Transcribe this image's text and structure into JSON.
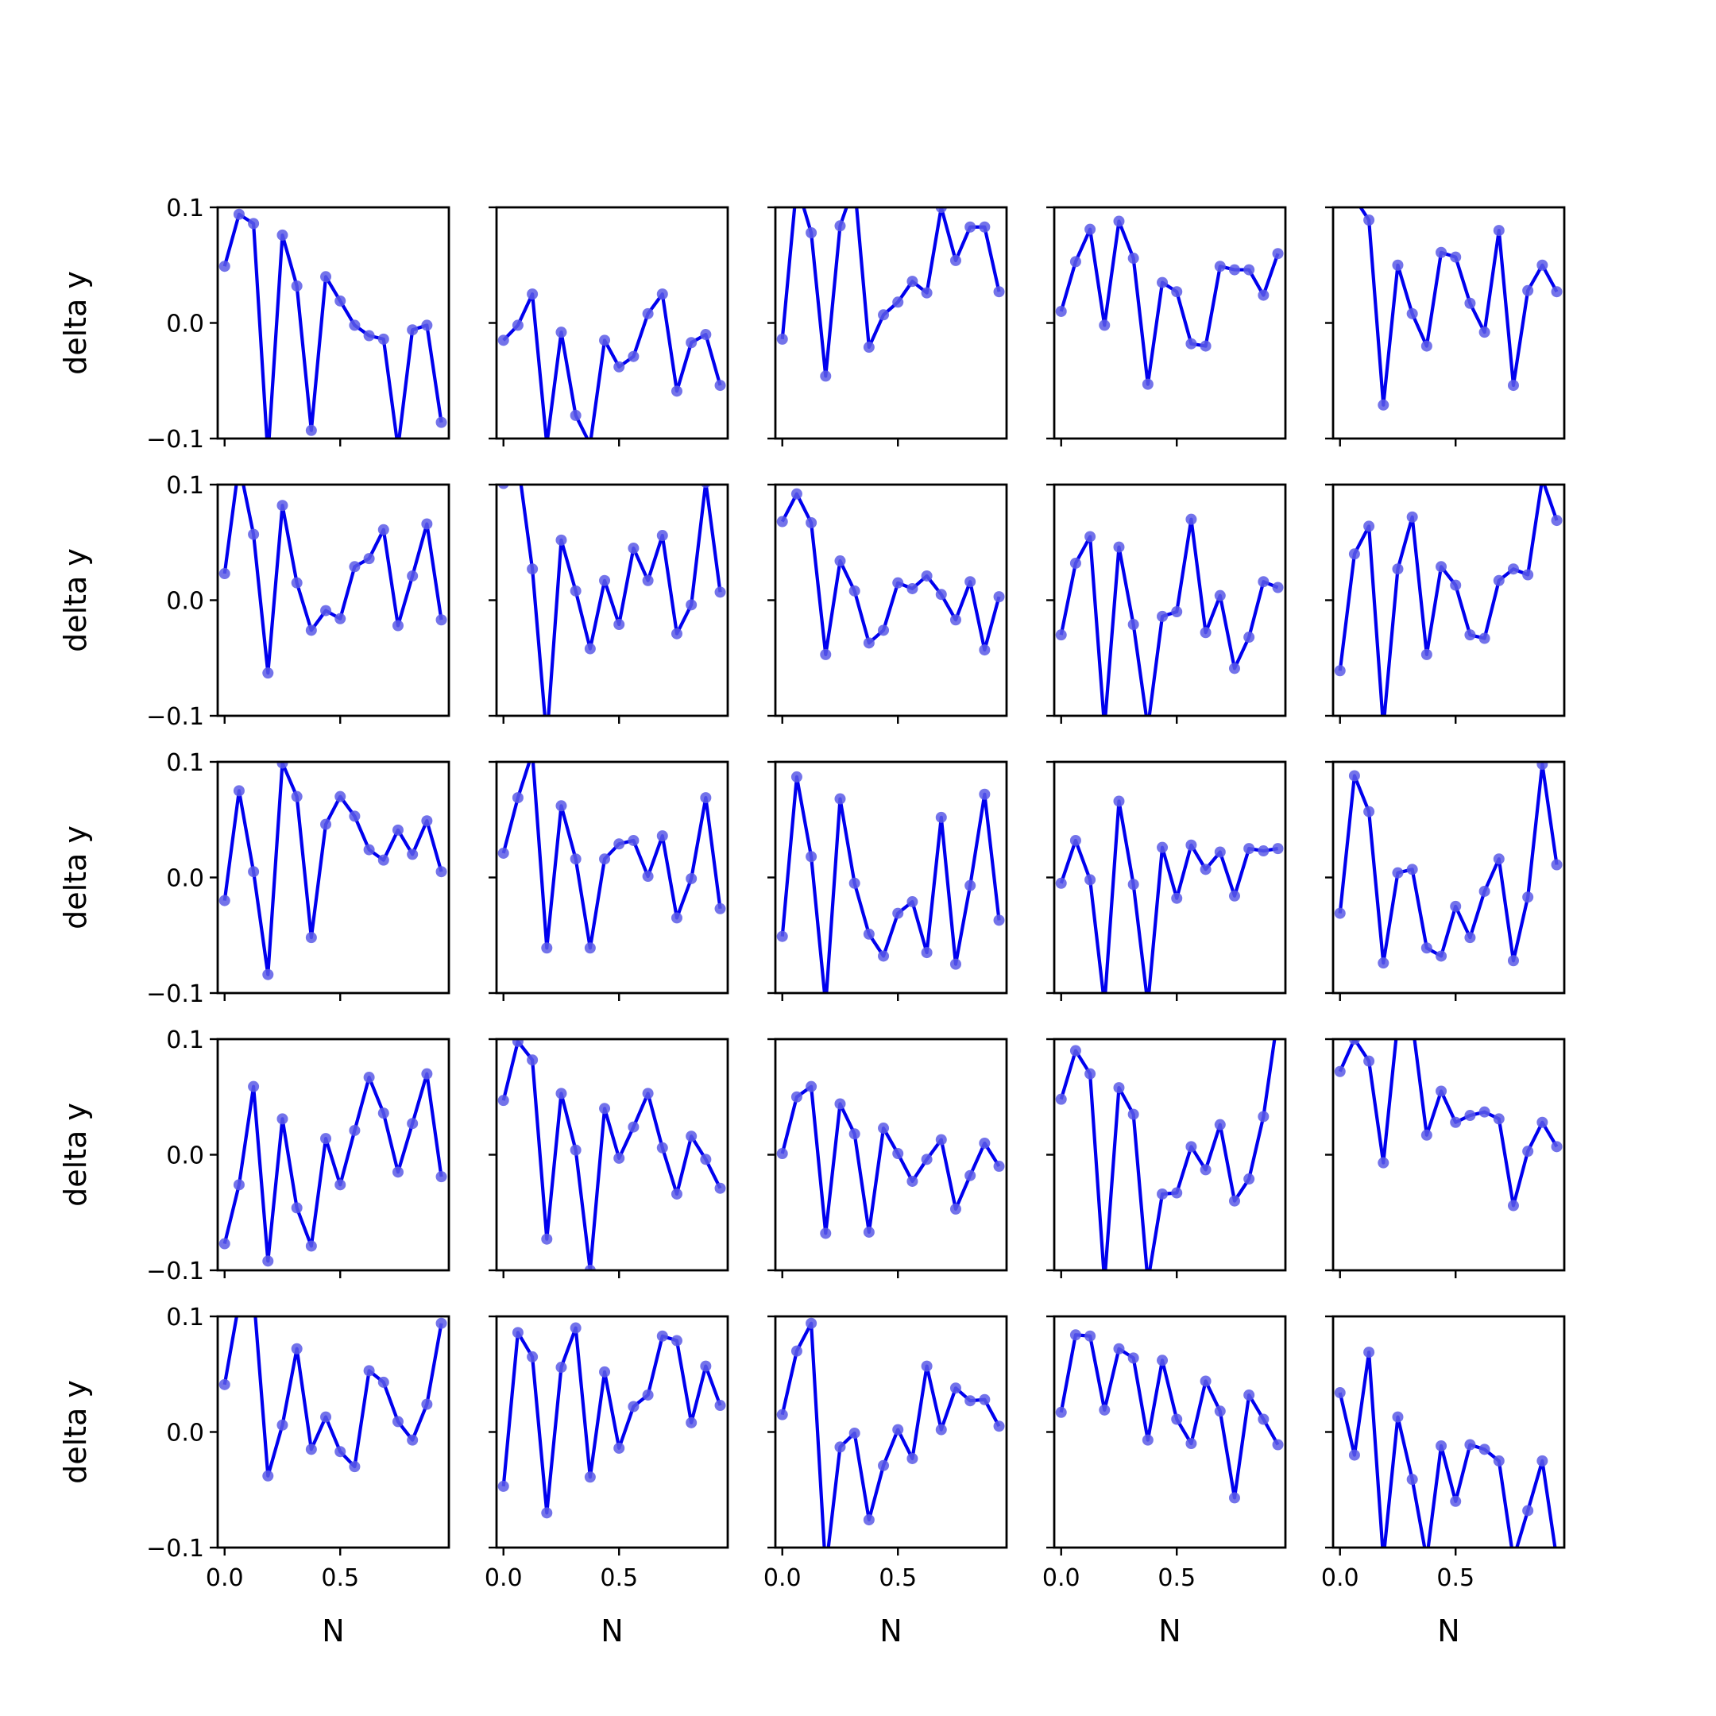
{
  "colors": {
    "line": "#0000ee",
    "marker": "#5a5ae6",
    "axes": "#000000",
    "background": "#ffffff"
  },
  "chart_data": {
    "type": "line",
    "layout": "5x5 small multiples, shared axes",
    "xlabel": "N",
    "ylabel": "delta y",
    "ylim": [
      -0.1,
      0.1
    ],
    "xlim": [
      -0.03,
      0.97
    ],
    "yticks": [
      -0.1,
      0.0,
      0.1
    ],
    "ytick_labels": [
      "−0.1",
      "0.0",
      "0.1"
    ],
    "xticks": [
      0.0,
      0.5
    ],
    "xtick_labels": [
      "0.0",
      "0.5"
    ],
    "grid": false,
    "x": [
      0.0,
      0.0625,
      0.125,
      0.1875,
      0.25,
      0.3125,
      0.375,
      0.4375,
      0.5,
      0.5625,
      0.625,
      0.6875,
      0.75,
      0.8125,
      0.875,
      0.9375
    ],
    "panels": [
      {
        "values": [
          0.049,
          0.094,
          0.086,
          -0.115,
          0.076,
          0.032,
          -0.093,
          0.04,
          0.019,
          -0.002,
          -0.011,
          -0.014,
          -0.108,
          -0.006,
          -0.002,
          -0.086
        ]
      },
      {
        "values": [
          -0.015,
          -0.002,
          0.025,
          -0.105,
          -0.008,
          -0.08,
          -0.105,
          -0.015,
          -0.038,
          -0.029,
          0.008,
          0.025,
          -0.059,
          -0.017,
          -0.01,
          -0.054
        ]
      },
      {
        "values": [
          -0.014,
          0.12,
          0.078,
          -0.046,
          0.084,
          0.12,
          -0.021,
          0.007,
          0.018,
          0.036,
          0.026,
          0.1,
          0.054,
          0.083,
          0.083,
          0.027
        ]
      },
      {
        "values": [
          0.01,
          0.053,
          0.081,
          -0.002,
          0.088,
          0.056,
          -0.053,
          0.035,
          0.027,
          -0.018,
          -0.02,
          0.049,
          0.046,
          0.046,
          0.024,
          0.06
        ]
      },
      {
        "values": [
          0.12,
          0.108,
          0.089,
          -0.071,
          0.05,
          0.008,
          -0.02,
          0.061,
          0.057,
          0.017,
          -0.008,
          0.08,
          -0.054,
          0.028,
          0.05,
          0.027
        ]
      },
      {
        "values": [
          0.023,
          0.118,
          0.057,
          -0.063,
          0.082,
          0.015,
          -0.026,
          -0.009,
          -0.016,
          0.029,
          0.036,
          0.061,
          -0.022,
          0.021,
          0.066,
          -0.017
        ]
      },
      {
        "values": [
          0.101,
          0.12,
          0.027,
          -0.12,
          0.052,
          0.008,
          -0.042,
          0.017,
          -0.021,
          0.045,
          0.017,
          0.056,
          -0.029,
          -0.004,
          0.102,
          0.007
        ]
      },
      {
        "values": [
          0.068,
          0.092,
          0.067,
          -0.047,
          0.034,
          0.008,
          -0.037,
          -0.026,
          0.015,
          0.01,
          0.021,
          0.005,
          -0.017,
          0.016,
          -0.043,
          0.003
        ]
      },
      {
        "values": [
          -0.03,
          0.032,
          0.055,
          -0.11,
          0.046,
          -0.021,
          -0.11,
          -0.014,
          -0.01,
          0.07,
          -0.028,
          0.004,
          -0.059,
          -0.032,
          0.016,
          0.011
        ]
      },
      {
        "values": [
          -0.061,
          0.04,
          0.064,
          -0.11,
          0.027,
          0.072,
          -0.047,
          0.029,
          0.013,
          -0.03,
          -0.033,
          0.017,
          0.027,
          0.022,
          0.105,
          0.069
        ]
      },
      {
        "values": [
          -0.02,
          0.075,
          0.005,
          -0.084,
          0.099,
          0.07,
          -0.052,
          0.046,
          0.07,
          0.053,
          0.024,
          0.015,
          0.041,
          0.02,
          0.049,
          0.005
        ]
      },
      {
        "values": [
          0.021,
          0.069,
          0.108,
          -0.061,
          0.062,
          0.016,
          -0.061,
          0.016,
          0.029,
          0.032,
          0.001,
          0.036,
          -0.035,
          -0.001,
          0.069,
          -0.027
        ]
      },
      {
        "values": [
          -0.051,
          0.087,
          0.018,
          -0.11,
          0.068,
          -0.005,
          -0.049,
          -0.068,
          -0.031,
          -0.021,
          -0.065,
          0.052,
          -0.075,
          -0.007,
          0.072,
          -0.037
        ]
      },
      {
        "values": [
          -0.005,
          0.032,
          -0.002,
          -0.11,
          0.066,
          -0.006,
          -0.11,
          0.026,
          -0.018,
          0.028,
          0.007,
          0.022,
          -0.016,
          0.025,
          0.023,
          0.025
        ]
      },
      {
        "values": [
          -0.031,
          0.088,
          0.057,
          -0.074,
          0.004,
          0.007,
          -0.061,
          -0.068,
          -0.025,
          -0.052,
          -0.012,
          0.016,
          -0.072,
          -0.017,
          0.098,
          0.011
        ]
      },
      {
        "values": [
          -0.077,
          -0.026,
          0.059,
          -0.092,
          0.031,
          -0.046,
          -0.079,
          0.014,
          -0.026,
          0.021,
          0.067,
          0.036,
          -0.015,
          0.027,
          0.07,
          -0.019
        ]
      },
      {
        "values": [
          0.047,
          0.098,
          0.082,
          -0.073,
          0.053,
          0.004,
          -0.1,
          0.04,
          -0.003,
          0.024,
          0.053,
          0.006,
          -0.034,
          0.016,
          -0.004,
          -0.029
        ]
      },
      {
        "values": [
          0.001,
          0.05,
          0.059,
          -0.068,
          0.044,
          0.018,
          -0.067,
          0.023,
          0.001,
          -0.023,
          -0.004,
          0.013,
          -0.047,
          -0.018,
          0.01,
          -0.01
        ]
      },
      {
        "values": [
          0.048,
          0.09,
          0.07,
          -0.11,
          0.058,
          0.035,
          -0.11,
          -0.034,
          -0.033,
          0.007,
          -0.013,
          0.026,
          -0.04,
          -0.021,
          0.033,
          0.12
        ]
      },
      {
        "values": [
          0.072,
          0.1,
          0.081,
          -0.007,
          0.115,
          0.115,
          0.017,
          0.055,
          0.028,
          0.034,
          0.037,
          0.031,
          -0.044,
          0.003,
          0.028,
          0.007
        ]
      },
      {
        "values": [
          0.041,
          0.112,
          0.12,
          -0.038,
          0.006,
          0.072,
          -0.015,
          0.013,
          -0.017,
          -0.03,
          0.053,
          0.043,
          0.009,
          -0.007,
          0.024,
          0.094
        ]
      },
      {
        "values": [
          -0.047,
          0.086,
          0.065,
          -0.07,
          0.056,
          0.09,
          -0.039,
          0.052,
          -0.014,
          0.022,
          0.032,
          0.083,
          0.079,
          0.008,
          0.057,
          0.023
        ]
      },
      {
        "values": [
          0.015,
          0.07,
          0.094,
          -0.12,
          -0.013,
          -0.001,
          -0.076,
          -0.029,
          0.002,
          -0.023,
          0.057,
          0.002,
          0.038,
          0.027,
          0.028,
          0.005
        ]
      },
      {
        "values": [
          0.017,
          0.084,
          0.083,
          0.019,
          0.072,
          0.064,
          -0.007,
          0.062,
          0.011,
          -0.01,
          0.044,
          0.018,
          -0.057,
          0.032,
          0.011,
          -0.011
        ]
      },
      {
        "values": [
          0.034,
          -0.02,
          0.069,
          -0.11,
          0.013,
          -0.041,
          -0.11,
          -0.012,
          -0.06,
          -0.011,
          -0.015,
          -0.025,
          -0.11,
          -0.068,
          -0.025,
          -0.11
        ]
      }
    ]
  }
}
